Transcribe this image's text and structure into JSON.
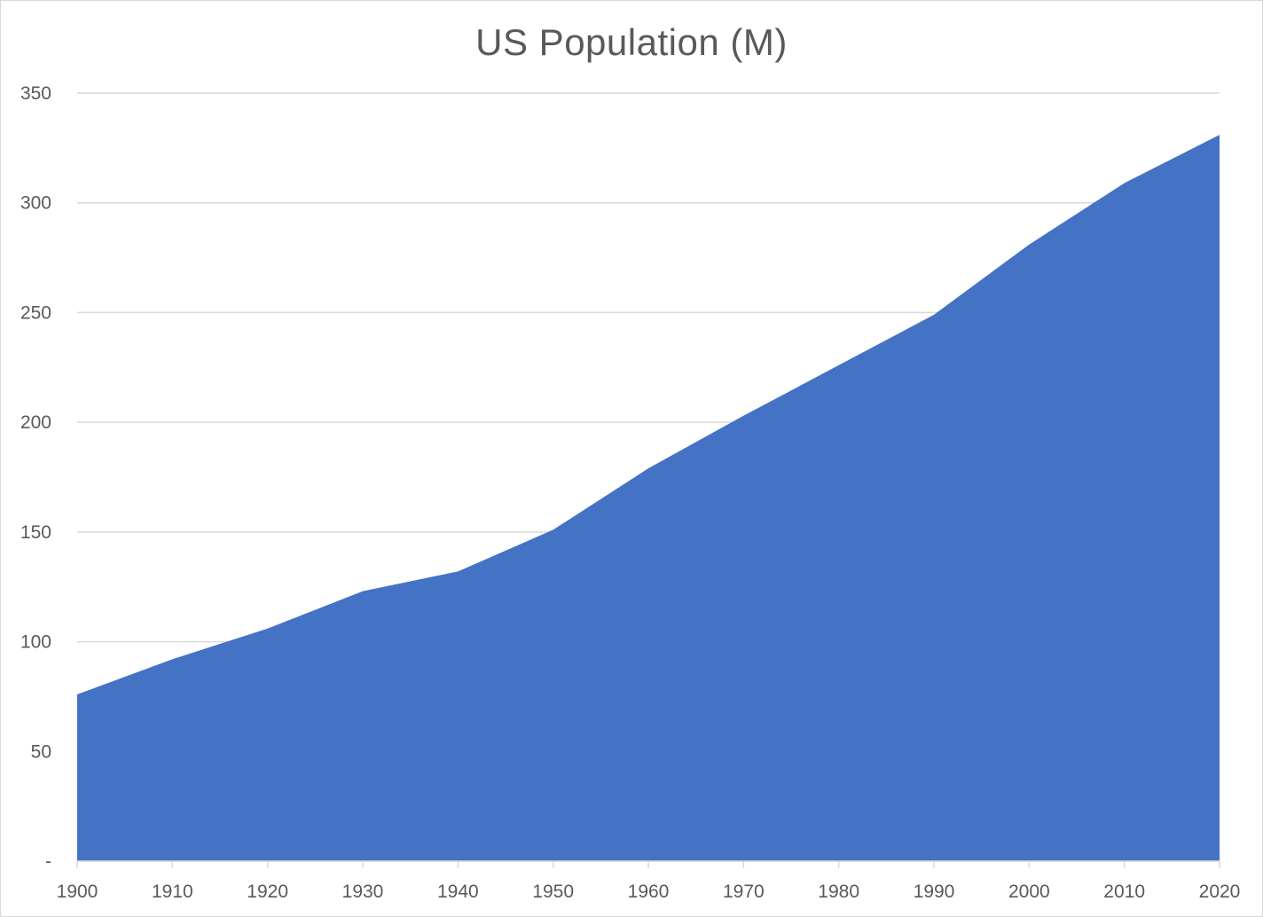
{
  "chart_data": {
    "type": "area",
    "title": "US Population (M)",
    "xlabel": "",
    "ylabel": "",
    "x": [
      "1900",
      "1910",
      "1920",
      "1930",
      "1940",
      "1950",
      "1960",
      "1970",
      "1980",
      "1990",
      "2000",
      "2010",
      "2020"
    ],
    "series": [
      {
        "values": [
          76,
          92,
          106,
          123,
          132,
          151,
          179,
          203,
          226,
          249,
          281,
          309,
          331
        ],
        "color": "#4472C4"
      }
    ],
    "ylim": [
      0,
      350
    ],
    "yticks": [
      0,
      50,
      100,
      150,
      200,
      250,
      300,
      350
    ],
    "ytick_labels": [
      "-",
      "50",
      "100",
      "150",
      "200",
      "250",
      "300",
      "350"
    ],
    "grid": true,
    "gridline_color": "#d9d9d9",
    "text_color": "#595959",
    "legend": "none"
  }
}
